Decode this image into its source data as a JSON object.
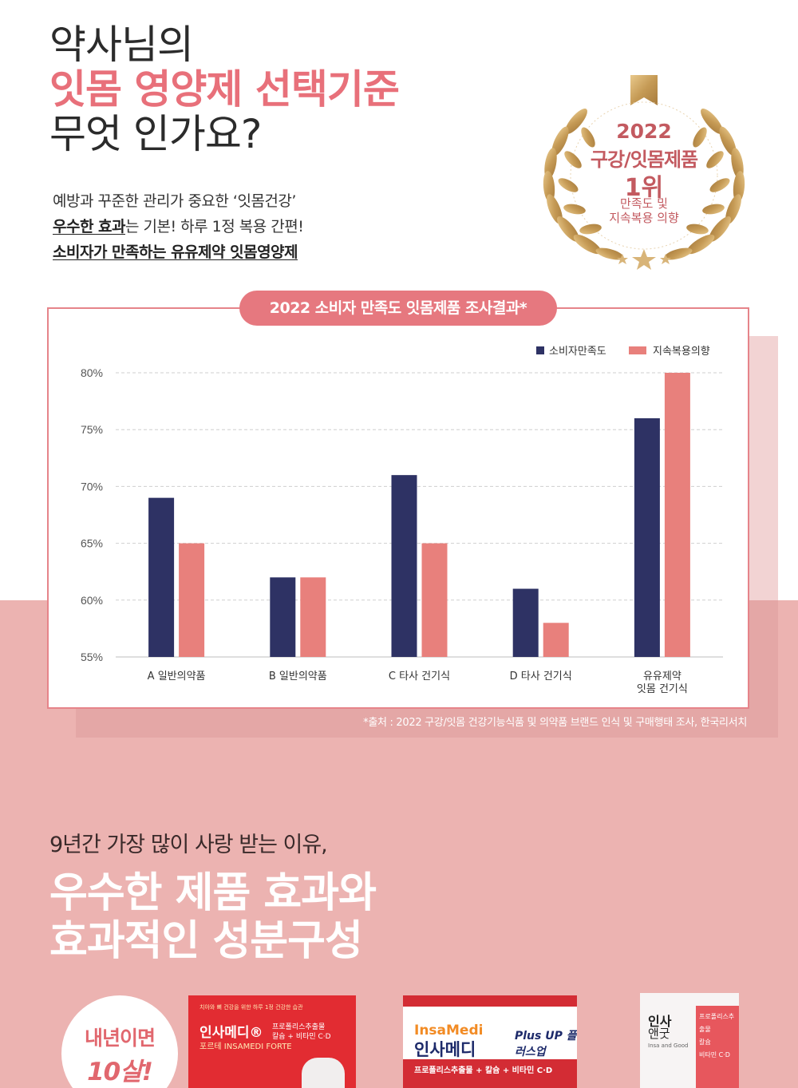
{
  "headline": {
    "line1": "약사님의",
    "line2": "잇몸 영양제 선택기준",
    "line3": "무엇 인가요?"
  },
  "intro": {
    "line1": "예방과 꾸준한 관리가 중요한 ‘잇몸건강’",
    "line2_bold": "우수한 효과",
    "line2_rest": "는 기본!  하루 1정 복용 간편!",
    "line3": "소비자가 만족하는 유유제약 잇몸영양제"
  },
  "award": {
    "year": "2022",
    "category": "구강/잇몸제품",
    "rank": "1위",
    "sub1": "만족도 및",
    "sub2": "지속복용 의향"
  },
  "chart_title": "2022 소비자 만족도 잇몸제품 조사결과*",
  "chart_data": {
    "type": "bar",
    "title": "2022 소비자 만족도 잇몸제품 조사결과*",
    "categories": [
      "A 일반의약품",
      "B 일반의약품",
      "C 타사 건기식",
      "D 타사 건기식",
      "유유제약\n잇몸 건기식"
    ],
    "category_lines": [
      [
        "A 일반의약품"
      ],
      [
        "B 일반의약품"
      ],
      [
        "C 타사 건기식"
      ],
      [
        "D 타사 건기식"
      ],
      [
        "유유제약",
        "잇몸 건기식"
      ]
    ],
    "series": [
      {
        "name": "소비자만족도",
        "color": "#2e3264",
        "values": [
          69,
          62,
          71,
          61,
          76
        ]
      },
      {
        "name": "지속복용의향",
        "color": "#e8807c",
        "values": [
          65,
          62,
          65,
          58,
          80
        ]
      }
    ],
    "ylim": [
      55,
      80
    ],
    "yticks": [
      55,
      60,
      65,
      70,
      75,
      80
    ],
    "ytick_labels": [
      "55%",
      "60%",
      "65%",
      "70%",
      "75%",
      "80%"
    ],
    "xlabel": "",
    "ylabel": "",
    "grid": true,
    "legend": "top-right"
  },
  "source": "*출처 : 2022 구강/잇몸 건강기능식품 및 의약품 브랜드 인식 및 구매행태 조사, 한국리서치",
  "section2": {
    "small": "9년간 가장 많이 사랑 받는 이유,",
    "big1": "우수한 제품 효과와",
    "big2": "효과적인 성분구성"
  },
  "circle_badge": {
    "line1": "내년이면",
    "line2": "10살!"
  },
  "products": {
    "p1": {
      "top": "치아와 뼈 건강을 위한 하루 1정 건강한 습관",
      "name": "인사메디®",
      "sub": "포르테 INSAMEDI FORTE",
      "desc1": "프로폴리스추출물",
      "desc2": "칼슘 + 비타민 C·D"
    },
    "p2": {
      "en": "InsaMedi",
      "ko": "인사메디",
      "plus": "Plus UP 플러스업",
      "bar": "프로폴리스추출물 + 칼슘 + 비타민 C·D"
    },
    "p3": {
      "ko": "인사",
      "ko2": "앤굿",
      "en": "Insa and Good",
      "side1": "프로폴리스추출물",
      "side2": "칼슘",
      "side3": "비타민 C·D"
    }
  },
  "colors": {
    "accent": "#e8707a",
    "navy": "#2e3264",
    "salmon": "#e8807c",
    "pink_bg": "#ecb3b1"
  }
}
